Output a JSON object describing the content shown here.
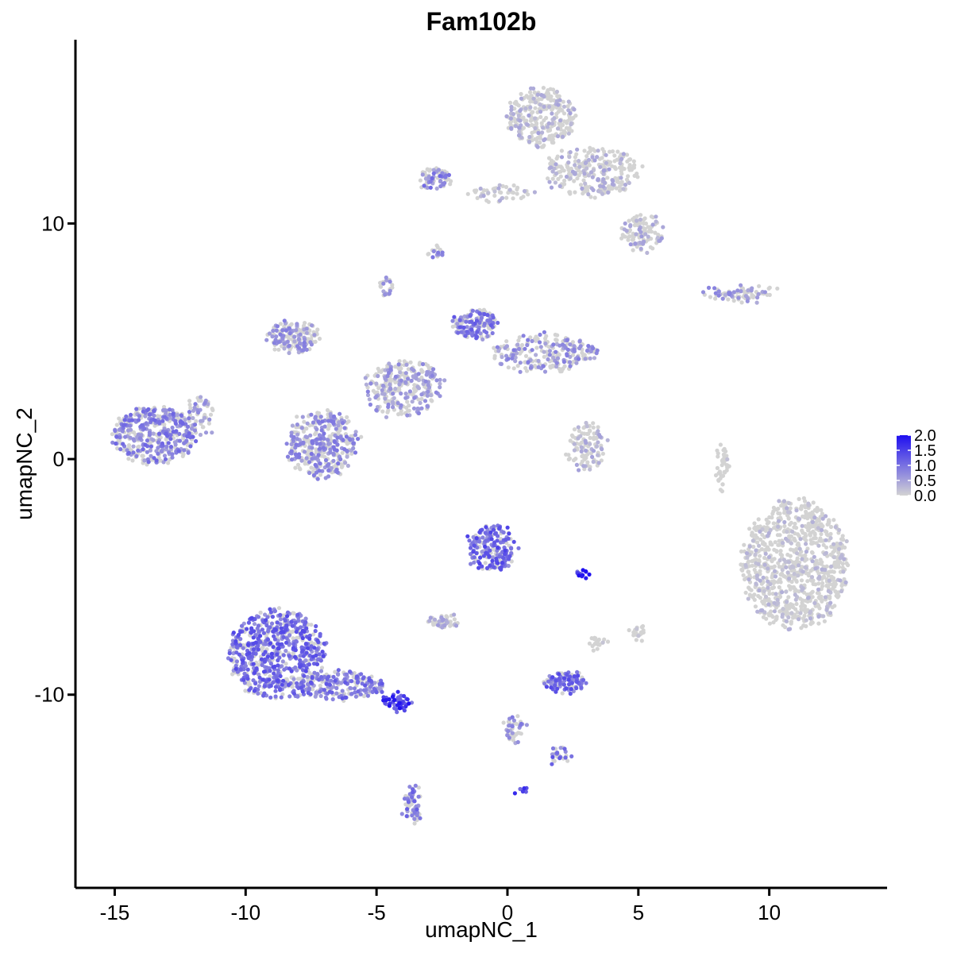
{
  "chart_data": {
    "type": "scatter",
    "title": "Fam102b",
    "xlabel": "umapNC_1",
    "ylabel": "umapNC_2",
    "xlim": [
      -16.5,
      14.5
    ],
    "ylim": [
      -18.2,
      17.8
    ],
    "x_ticks": [
      -15,
      -10,
      -5,
      0,
      5,
      10
    ],
    "x_tick_labels": [
      "-15",
      "-10",
      "-5",
      "0",
      "5",
      "10"
    ],
    "y_ticks": [
      -10,
      0,
      10
    ],
    "y_tick_labels": [
      "-10",
      "0",
      "10"
    ],
    "grid": false,
    "legend_position": "right",
    "color_scale": {
      "low_color": "#d3d3d3",
      "high_color": "#1e0ff0",
      "min": 0.0,
      "max": 2.0,
      "ticks": [
        0.0,
        0.5,
        1.0,
        1.5,
        2.0
      ],
      "tick_labels": [
        "0.0",
        "0.5",
        "1.0",
        "1.5",
        "2.0"
      ]
    },
    "clusters": [
      {
        "cx": -13.5,
        "cy": 1.0,
        "rx": 1.6,
        "ry": 1.2,
        "n": 420,
        "expr": 0.75
      },
      {
        "cx": -11.8,
        "cy": 1.8,
        "rx": 0.5,
        "ry": 0.9,
        "n": 60,
        "expr": 0.6
      },
      {
        "cx": -8.8,
        "cy": -8.3,
        "rx": 1.8,
        "ry": 1.9,
        "n": 700,
        "expr": 0.95
      },
      {
        "cx": -6.3,
        "cy": -9.6,
        "rx": 1.6,
        "ry": 0.6,
        "n": 180,
        "expr": 0.85
      },
      {
        "cx": -4.2,
        "cy": -10.3,
        "rx": 0.5,
        "ry": 0.35,
        "n": 50,
        "expr": 1.4
      },
      {
        "cx": -3.6,
        "cy": -14.7,
        "rx": 0.3,
        "ry": 0.8,
        "n": 60,
        "expr": 0.8
      },
      {
        "cx": -7.1,
        "cy": 0.6,
        "rx": 1.3,
        "ry": 1.4,
        "n": 380,
        "expr": 0.65
      },
      {
        "cx": -8.2,
        "cy": 5.2,
        "rx": 1.0,
        "ry": 0.7,
        "n": 160,
        "expr": 0.6
      },
      {
        "cx": -4.0,
        "cy": 3.0,
        "rx": 1.5,
        "ry": 1.2,
        "n": 280,
        "expr": 0.55
      },
      {
        "cx": -1.2,
        "cy": 5.7,
        "rx": 0.8,
        "ry": 0.6,
        "n": 140,
        "expr": 0.85
      },
      {
        "cx": 1.5,
        "cy": 4.5,
        "rx": 2.0,
        "ry": 0.8,
        "n": 230,
        "expr": 0.6
      },
      {
        "cx": -4.6,
        "cy": 7.3,
        "rx": 0.25,
        "ry": 0.4,
        "n": 25,
        "expr": 0.5
      },
      {
        "cx": -2.7,
        "cy": 11.9,
        "rx": 0.6,
        "ry": 0.5,
        "n": 70,
        "expr": 0.75
      },
      {
        "cx": 1.3,
        "cy": 14.5,
        "rx": 1.3,
        "ry": 1.2,
        "n": 300,
        "expr": 0.35
      },
      {
        "cx": 3.2,
        "cy": 12.2,
        "rx": 1.8,
        "ry": 1.0,
        "n": 280,
        "expr": 0.35
      },
      {
        "cx": 5.2,
        "cy": 9.6,
        "rx": 0.8,
        "ry": 0.8,
        "n": 110,
        "expr": 0.4
      },
      {
        "cx": -0.3,
        "cy": 11.3,
        "rx": 1.2,
        "ry": 0.3,
        "n": 50,
        "expr": 0.3
      },
      {
        "cx": 9.0,
        "cy": 7.0,
        "rx": 1.4,
        "ry": 0.25,
        "n": 80,
        "expr": 0.55
      },
      {
        "cx": 3.0,
        "cy": 0.5,
        "rx": 0.7,
        "ry": 1.0,
        "n": 110,
        "expr": 0.35
      },
      {
        "cx": 8.2,
        "cy": -0.3,
        "rx": 0.2,
        "ry": 1.1,
        "n": 40,
        "expr": 0.15
      },
      {
        "cx": 11.0,
        "cy": -4.5,
        "rx": 2.0,
        "ry": 2.8,
        "n": 900,
        "expr": 0.25
      },
      {
        "cx": -0.6,
        "cy": -3.8,
        "rx": 0.9,
        "ry": 1.0,
        "n": 200,
        "expr": 1.0
      },
      {
        "cx": -2.4,
        "cy": -6.9,
        "rx": 0.6,
        "ry": 0.3,
        "n": 50,
        "expr": 0.4
      },
      {
        "cx": 2.2,
        "cy": -9.5,
        "rx": 0.8,
        "ry": 0.4,
        "n": 110,
        "expr": 0.95
      },
      {
        "cx": 0.2,
        "cy": -11.5,
        "rx": 0.4,
        "ry": 0.6,
        "n": 45,
        "expr": 0.65
      },
      {
        "cx": 2.0,
        "cy": -12.6,
        "rx": 0.4,
        "ry": 0.3,
        "n": 25,
        "expr": 0.9
      },
      {
        "cx": 2.9,
        "cy": -4.9,
        "rx": 0.3,
        "ry": 0.1,
        "n": 15,
        "expr": 1.5
      },
      {
        "cx": -2.7,
        "cy": 8.8,
        "rx": 0.25,
        "ry": 0.25,
        "n": 15,
        "expr": 0.7
      },
      {
        "cx": 0.6,
        "cy": -14.0,
        "rx": 0.1,
        "ry": 0.1,
        "n": 6,
        "expr": 1.2
      },
      {
        "cx": 5.0,
        "cy": -7.4,
        "rx": 0.3,
        "ry": 0.3,
        "n": 20,
        "expr": 0.1
      },
      {
        "cx": 3.4,
        "cy": -7.8,
        "rx": 0.3,
        "ry": 0.4,
        "n": 20,
        "expr": 0.1
      }
    ]
  }
}
